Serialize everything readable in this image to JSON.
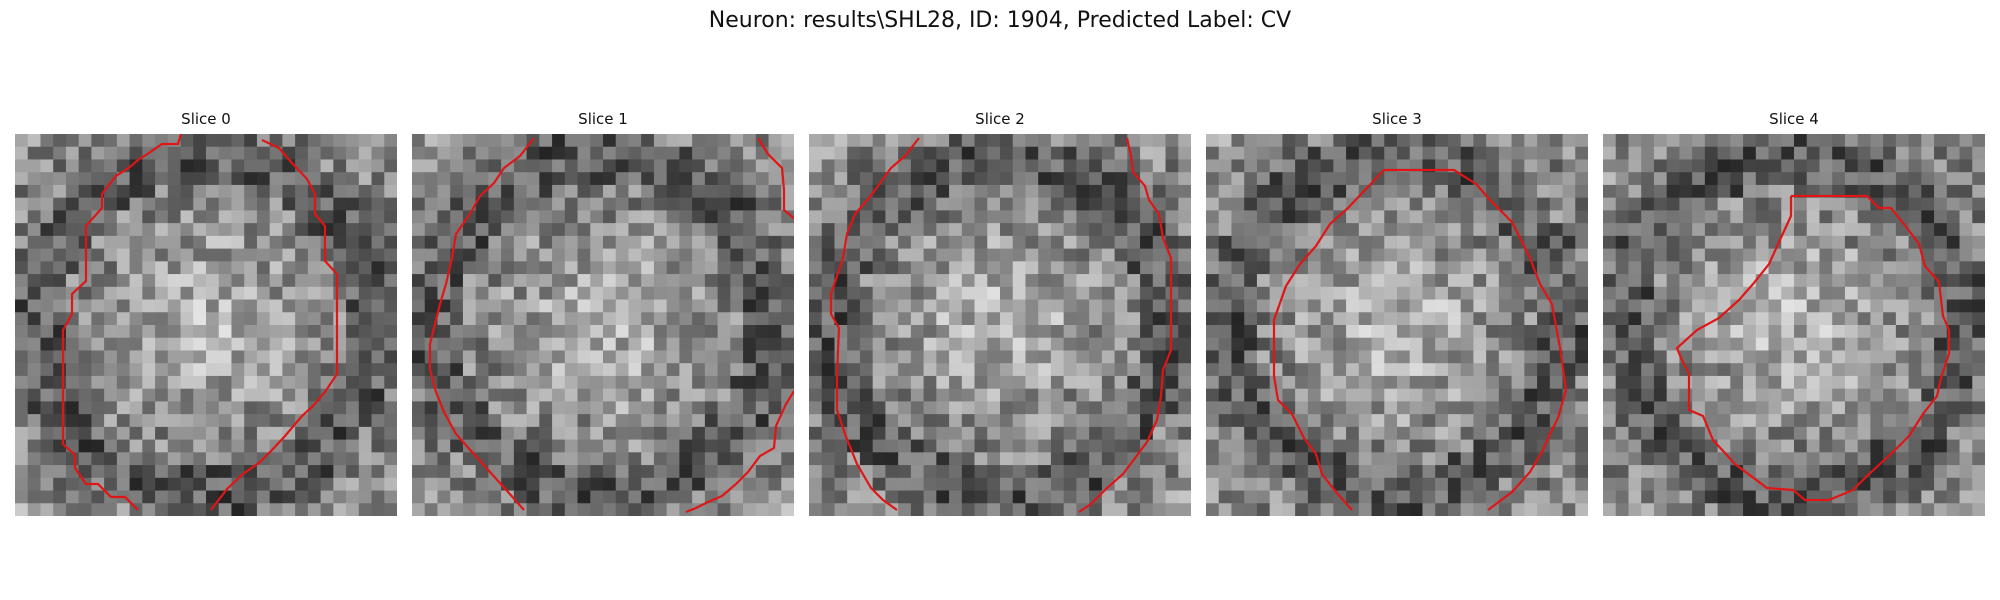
{
  "title": "Neuron: results\\SHL28, ID: 1904, Predicted Label: CV",
  "colors": {
    "contour": "#e01515",
    "background": "#ffffff"
  },
  "panels": [
    {
      "label": "Slice 0",
      "seed": 11
    },
    {
      "label": "Slice 1",
      "seed": 23
    },
    {
      "label": "Slice 2",
      "seed": 37
    },
    {
      "label": "Slice 3",
      "seed": 41
    },
    {
      "label": "Slice 4",
      "seed": 59
    }
  ]
}
